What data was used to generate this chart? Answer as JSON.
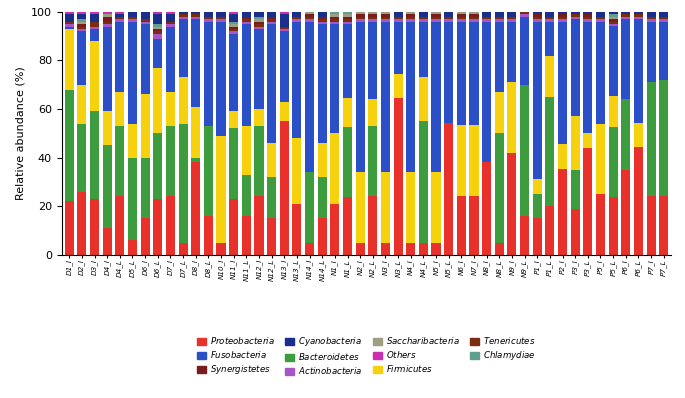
{
  "categories": [
    "D1_I",
    "D2_I",
    "D3_I",
    "D4_I",
    "D4_L",
    "D5_L",
    "D6_I",
    "D6_L",
    "D7_I",
    "D7_L",
    "D8_I",
    "D8_L",
    "N10_I",
    "N11_I",
    "N11_L",
    "N12_I",
    "N12_L",
    "N13_I",
    "N13_L",
    "N14_I",
    "N14_L",
    "N1_I",
    "N1_L",
    "N2_I",
    "N2_L",
    "N3_I",
    "N3_L",
    "N4_I",
    "N4_L",
    "N5_I",
    "N5_L",
    "N6_I",
    "N7_I",
    "N8_I",
    "N8_L",
    "N9_I",
    "N9_L",
    "P1_I",
    "P1_L",
    "P2_I",
    "P3_I",
    "P3_L",
    "P5_I",
    "P5_L",
    "P6_I",
    "P6_L",
    "P7_I",
    "P7_L"
  ],
  "series": {
    "Proteobacteria": [
      22,
      26,
      23,
      11,
      24,
      6,
      15,
      23,
      24,
      5,
      38,
      16,
      5,
      23,
      16,
      24,
      15,
      55,
      21,
      5,
      15,
      21,
      24,
      5,
      24,
      5,
      65,
      5,
      5,
      5,
      55,
      24,
      24,
      38,
      5,
      42,
      16,
      15,
      20,
      35,
      19,
      44,
      25,
      24,
      35,
      45,
      24,
      24
    ],
    "Bacteroidetes": [
      46,
      28,
      36,
      34,
      29,
      34,
      25,
      27,
      29,
      49,
      2,
      37,
      0,
      29,
      17,
      29,
      17,
      0,
      0,
      29,
      17,
      0,
      29,
      0,
      29,
      0,
      0,
      0,
      50,
      0,
      0,
      0,
      0,
      0,
      45,
      0,
      54,
      10,
      45,
      0,
      16,
      0,
      0,
      29,
      29,
      0,
      47,
      48
    ],
    "Firmicutes": [
      25,
      16,
      29,
      14,
      14,
      14,
      26,
      27,
      14,
      19,
      21,
      0,
      44,
      7,
      20,
      7,
      14,
      8,
      27,
      0,
      14,
      29,
      12,
      29,
      11,
      29,
      10,
      29,
      18,
      29,
      0,
      29,
      29,
      0,
      17,
      29,
      0,
      6,
      17,
      10,
      22,
      6,
      29,
      13,
      0,
      10,
      0,
      0
    ],
    "Fusobacteria": [
      1,
      22,
      5,
      35,
      29,
      42,
      29,
      12,
      27,
      24,
      36,
      43,
      47,
      32,
      42,
      33,
      49,
      29,
      48,
      62,
      49,
      45,
      31,
      62,
      32,
      62,
      22,
      62,
      23,
      62,
      42,
      42,
      42,
      58,
      29,
      25,
      28,
      65,
      14,
      50,
      40,
      46,
      42,
      29,
      33,
      43,
      25,
      24
    ],
    "Actinobacteria": [
      1,
      1,
      1,
      1,
      1,
      1,
      1,
      2,
      1,
      1,
      1,
      1,
      1,
      1,
      1,
      1,
      1,
      1,
      1,
      1,
      1,
      1,
      1,
      1,
      1,
      1,
      1,
      1,
      1,
      1,
      1,
      1,
      1,
      1,
      1,
      1,
      1,
      1,
      1,
      1,
      1,
      1,
      1,
      1,
      1,
      1,
      1,
      1
    ],
    "Tenericutes": [
      1,
      1,
      2,
      1,
      1,
      1,
      1,
      1,
      1,
      1,
      1,
      1,
      1,
      1,
      1,
      1,
      1,
      1,
      1,
      1,
      1,
      1,
      1,
      1,
      1,
      1,
      1,
      1,
      1,
      1,
      1,
      1,
      1,
      1,
      1,
      1,
      1,
      1,
      1,
      1,
      1,
      1,
      1,
      1,
      1,
      1,
      1,
      1
    ],
    "Synergistetes": [
      0,
      1,
      0,
      2,
      0,
      0,
      0,
      1,
      0,
      0,
      0,
      0,
      0,
      1,
      1,
      1,
      1,
      0,
      0,
      1,
      1,
      1,
      1,
      1,
      1,
      1,
      0,
      1,
      0,
      1,
      0,
      1,
      1,
      0,
      0,
      0,
      0,
      1,
      0,
      1,
      0,
      1,
      0,
      1,
      0,
      0,
      0,
      0
    ],
    "Saccharibacteria": [
      0,
      1,
      0,
      1,
      0,
      0,
      0,
      1,
      0,
      0,
      0,
      0,
      0,
      1,
      0,
      1,
      0,
      0,
      0,
      1,
      0,
      1,
      1,
      1,
      1,
      1,
      0,
      1,
      0,
      1,
      0,
      1,
      1,
      0,
      0,
      0,
      0,
      0,
      0,
      0,
      0,
      0,
      0,
      1,
      0,
      0,
      0,
      0
    ],
    "Chlamydiae": [
      0,
      1,
      0,
      0,
      0,
      0,
      0,
      1,
      0,
      0,
      0,
      0,
      0,
      1,
      0,
      1,
      0,
      0,
      0,
      0,
      0,
      1,
      1,
      0,
      0,
      0,
      0,
      0,
      0,
      0,
      0,
      0,
      0,
      0,
      0,
      0,
      0,
      0,
      0,
      0,
      0,
      0,
      0,
      1,
      0,
      0,
      0,
      0
    ],
    "Cyanobacteria": [
      3,
      2,
      3,
      0,
      1,
      2,
      3,
      4,
      3,
      1,
      1,
      2,
      2,
      3,
      2,
      2,
      2,
      5,
      2,
      0,
      2,
      0,
      0,
      0,
      0,
      0,
      2,
      0,
      2,
      0,
      2,
      0,
      0,
      2,
      2,
      2,
      0,
      1,
      2,
      1,
      1,
      1,
      2,
      1,
      1,
      1,
      2,
      2
    ],
    "Others": [
      1,
      1,
      1,
      1,
      1,
      0,
      0,
      1,
      1,
      0,
      0,
      0,
      0,
      1,
      0,
      0,
      0,
      1,
      0,
      0,
      0,
      0,
      0,
      0,
      0,
      0,
      0,
      0,
      0,
      0,
      0,
      0,
      0,
      0,
      0,
      0,
      0,
      0,
      0,
      0,
      0,
      0,
      0,
      0,
      0,
      0,
      0,
      0
    ]
  },
  "colors": {
    "Proteobacteria": "#e8312a",
    "Bacteroidetes": "#3c9c3e",
    "Firmicutes": "#f5d20d",
    "Fusobacteria": "#2b4fc7",
    "Actinobacteria": "#a855c8",
    "Tenericutes": "#7b2d10",
    "Synergistetes": "#7b1c1c",
    "Saccharibacteria": "#9e9e82",
    "Chlamydiae": "#5f9f8f",
    "Cyanobacteria": "#1a2f8c",
    "Others": "#cc2eb0"
  },
  "legend_order": [
    "Proteobacteria",
    "Fusobacteria",
    "Synergistetes",
    "Cyanobacteria",
    "Bacteroidetes",
    "Actinobacteria",
    "Saccharibacteria",
    "Others",
    "Firmicutes",
    "Tenericutes",
    "Chlamydiae"
  ],
  "ylabel": "Relative abundance (%)",
  "ylim": [
    0,
    100
  ],
  "bar_width": 0.72
}
